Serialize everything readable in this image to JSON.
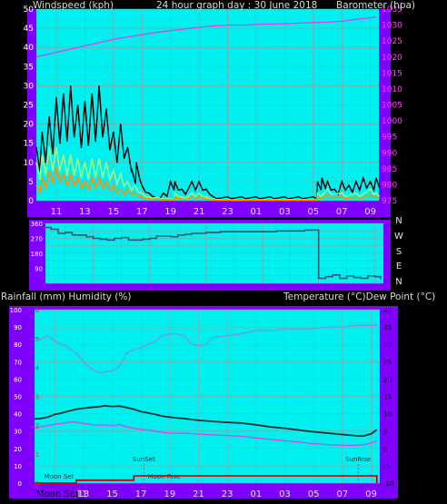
{
  "colors": {
    "background": "#000000",
    "frame": "#7f00ff",
    "plot_bg": "#00f0f0",
    "grid": "#9a9a9a",
    "wind_gust": "#000000",
    "wind_avg": "#90ff90",
    "wind_mean": "#ff9000",
    "barometer": "#e040e0",
    "direction": "#206080",
    "temperature": "#103030",
    "dew_point": "#e040e0",
    "humidity": "#8090e0",
    "rainfall": "#d00000",
    "left_tick": "#ffffff",
    "right_tick_baro": "#ff44ff",
    "red_tick": "#ff2020",
    "bottom_tick": "#000000"
  },
  "chart_data": [
    {
      "type": "line",
      "title": "24 hour graph day : 30 June 2018",
      "ylabel": "Windspeed (kph)",
      "y2label": "Barometer (hpa)",
      "ylim": [
        0,
        50
      ],
      "y2lim": [
        975,
        1035
      ],
      "yticks": [
        "0",
        "5",
        "10",
        "15",
        "20",
        "25",
        "30",
        "35",
        "40",
        "45",
        "50"
      ],
      "y2ticks": [
        "975",
        "980",
        "985",
        "990",
        "995",
        "1000",
        "1005",
        "1010",
        "1015",
        "1020",
        "1025",
        "1030",
        "1035"
      ],
      "xticks": [
        "11",
        "13",
        "15",
        "17",
        "19",
        "21",
        "23",
        "01",
        "03",
        "05",
        "07",
        "09"
      ],
      "grid": true,
      "series": [
        {
          "name": "gust",
          "color": "#000000",
          "x": [
            9.6,
            10,
            10.5,
            11,
            11.5,
            12,
            12.5,
            13,
            13.5,
            14,
            14.5,
            15,
            15.5,
            16,
            16.3,
            16.6,
            17,
            17.5,
            18,
            18.5,
            19,
            19.3,
            19.8,
            20.5,
            21,
            21.5,
            22,
            23,
            24,
            25,
            26,
            27,
            28,
            29,
            29.3,
            29.6,
            30,
            30.5,
            31,
            31.5,
            32,
            32.5,
            33,
            33.4
          ],
          "values": [
            14,
            18,
            22,
            27,
            28,
            30,
            25,
            26,
            28,
            30,
            24,
            18,
            20,
            14,
            8,
            10,
            4,
            2,
            1,
            2,
            5,
            5,
            3,
            5,
            5,
            3,
            1,
            1,
            1,
            1,
            1,
            1,
            1,
            1,
            5,
            6,
            5,
            3,
            5,
            4,
            5,
            6,
            5,
            6
          ]
        },
        {
          "name": "average",
          "color": "#90ff90",
          "x": [
            9.6,
            10,
            10.5,
            11,
            11.5,
            12,
            12.5,
            13,
            13.5,
            14,
            14.5,
            15,
            15.5,
            16,
            16.5,
            17,
            17.5,
            18,
            19,
            19.3,
            19.8,
            20.5,
            21,
            21.5,
            22,
            23,
            29,
            29.3,
            30,
            31,
            32,
            33,
            33.4
          ],
          "values": [
            10,
            12,
            14,
            14,
            12,
            12,
            11,
            10,
            11,
            11,
            10,
            8,
            7,
            5,
            4,
            2,
            1,
            1,
            0.5,
            2,
            1,
            2,
            2,
            1,
            0.5,
            0.3,
            0.3,
            2,
            3,
            2,
            2,
            3,
            2
          ]
        },
        {
          "name": "mean",
          "color": "#ff9000",
          "x": [
            9.6,
            10,
            10.5,
            11,
            11.5,
            12,
            12.5,
            13,
            13.5,
            14,
            14.5,
            15,
            15.5,
            16,
            16.5,
            17,
            17.5,
            18,
            19,
            19.3,
            19.8,
            20.5,
            21,
            21.5,
            22,
            23,
            29,
            29.3,
            30,
            31,
            32,
            33,
            33.4
          ],
          "values": [
            4,
            6,
            8,
            9,
            7,
            7,
            6,
            5,
            6,
            6,
            5,
            4,
            3,
            3,
            2,
            1,
            0.5,
            0.5,
            0.3,
            1,
            0.5,
            1,
            1,
            0.5,
            0.2,
            0.2,
            0.2,
            1,
            1.5,
            1,
            1,
            1.5,
            1
          ]
        },
        {
          "name": "barometer",
          "axis": "y2",
          "color": "#e040e0",
          "x": [
            9.6,
            11,
            12,
            13,
            14,
            15,
            16,
            17,
            18,
            19,
            20,
            21,
            22,
            23,
            24,
            25,
            26,
            27,
            28,
            29,
            30,
            31,
            32,
            33,
            33.4
          ],
          "values": [
            1020,
            1021.5,
            1022.5,
            1023.5,
            1024.5,
            1025.5,
            1026.3,
            1027,
            1027.7,
            1028.3,
            1028.8,
            1029.3,
            1029.7,
            1030,
            1030,
            1030.2,
            1030.3,
            1030.4,
            1030.6,
            1030.8,
            1030.9,
            1031.2,
            1031.8,
            1032.3,
            1032.5
          ]
        }
      ]
    },
    {
      "type": "line",
      "ylabel": "",
      "y2ticks": [
        "N",
        "W",
        "S",
        "E",
        "N"
      ],
      "yticks_left": [
        "360",
        "270",
        "180",
        "90"
      ],
      "ylim": [
        0,
        360
      ],
      "xticks": [
        "11",
        "13",
        "15",
        "17",
        "19",
        "21",
        "23",
        "01",
        "03",
        "05",
        "07",
        "09"
      ],
      "grid": true,
      "series": [
        {
          "name": "direction",
          "color": "#206080",
          "x": [
            9.6,
            10,
            10.5,
            11,
            11.5,
            12,
            12.5,
            13,
            13.5,
            14,
            14.5,
            15,
            15.5,
            16,
            16.5,
            17,
            17.5,
            18,
            18.5,
            19,
            19.5,
            20,
            20.5,
            21,
            21.5,
            22,
            23,
            24,
            25,
            26,
            27,
            28,
            28.9,
            29,
            29.5,
            30,
            30.5,
            31,
            31.5,
            32,
            32.5,
            33,
            33.4
          ],
          "values": [
            335,
            325,
            300,
            305,
            290,
            290,
            280,
            270,
            265,
            260,
            270,
            275,
            260,
            260,
            265,
            270,
            285,
            285,
            280,
            290,
            295,
            300,
            300,
            305,
            305,
            310,
            310,
            310,
            310,
            315,
            315,
            320,
            320,
            30,
            40,
            50,
            30,
            45,
            35,
            30,
            45,
            40,
            25
          ]
        }
      ]
    },
    {
      "type": "line",
      "ylabel": "Rainfall (mm)  Humidity (%)",
      "y2label": "Temperature (°C)Dew Point (°C)",
      "ylim": [
        0,
        100
      ],
      "y2lim": [
        -10,
        40
      ],
      "yticks": [
        "0",
        "10",
        "20",
        "30",
        "40",
        "50",
        "60",
        "70",
        "80",
        "90",
        "100"
      ],
      "y2ticks": [
        "-10",
        "-5",
        "0",
        "5",
        "10",
        "15",
        "20",
        "25",
        "30",
        "35",
        "40"
      ],
      "rain_ticks": [
        "0",
        "1",
        "2",
        "3",
        "4",
        "5",
        "6"
      ],
      "xticks": [
        "11",
        "13",
        "15",
        "17",
        "19",
        "21",
        "23",
        "01",
        "03",
        "05",
        "07",
        "09"
      ],
      "annotations": [
        "SunSet",
        "Moon Rise",
        "Moon Set",
        "SunRise"
      ],
      "grid": true,
      "series": [
        {
          "name": "humidity",
          "axis": "y",
          "color": "#8090e0",
          "x": [
            9.6,
            10,
            10.5,
            11,
            11.5,
            12,
            12.5,
            13,
            13.5,
            14,
            14.5,
            15,
            15.5,
            16,
            16.5,
            17,
            17.5,
            18,
            18.5,
            19,
            19.5,
            20,
            20.5,
            21,
            21.5,
            22,
            23,
            24,
            25,
            26,
            27,
            28,
            29,
            30,
            31,
            32,
            33,
            33.4
          ],
          "values": [
            84,
            83,
            85,
            82,
            80,
            78,
            75,
            70,
            66,
            64,
            64,
            65,
            67,
            75,
            77,
            78,
            80,
            82,
            85,
            86,
            86,
            85,
            80,
            79,
            80,
            84,
            85,
            86,
            88,
            88,
            89,
            89,
            89,
            90,
            90,
            91,
            91,
            91
          ]
        },
        {
          "name": "temperature",
          "axis": "y2",
          "color": "#103030",
          "x": [
            9.6,
            10,
            10.5,
            11,
            11.5,
            12,
            12.5,
            13,
            13.5,
            14,
            14.5,
            15,
            15.5,
            16,
            16.5,
            17,
            17.5,
            18,
            18.5,
            19,
            19.5,
            20,
            21,
            22,
            23,
            24,
            25,
            26,
            27,
            28,
            29,
            30,
            31,
            32,
            32.5,
            33,
            33.4
          ],
          "values": [
            8.5,
            8.6,
            9,
            9.8,
            10.2,
            10.8,
            11.3,
            11.6,
            11.8,
            12,
            12.3,
            12.1,
            12.2,
            11.8,
            11.3,
            10.6,
            10.2,
            9.8,
            9.3,
            9,
            8.8,
            8.6,
            8.1,
            7.8,
            7.5,
            7.3,
            6.8,
            6.2,
            5.8,
            5.3,
            4.8,
            4.4,
            4.0,
            3.6,
            3.6,
            4.2,
            5.4
          ]
        },
        {
          "name": "dew_point",
          "axis": "y2",
          "color": "#e040e0",
          "x": [
            9.6,
            10,
            10.5,
            11,
            11.5,
            12,
            12.5,
            13,
            13.5,
            14,
            14.5,
            15,
            15.5,
            16,
            16.5,
            17,
            17.5,
            18,
            18.5,
            19,
            19.5,
            20,
            21,
            22,
            23,
            24,
            25,
            26,
            27,
            28,
            29,
            30,
            31,
            32,
            32.5,
            33,
            33.4
          ],
          "values": [
            6,
            6.2,
            6.6,
            7.0,
            7.2,
            7.6,
            7.6,
            7.2,
            6.9,
            6.7,
            6.8,
            6.5,
            6.9,
            6.2,
            5.8,
            5.5,
            5.3,
            5.0,
            4.6,
            4.4,
            4.4,
            4.4,
            4.1,
            3.9,
            3.7,
            3.5,
            3.0,
            2.6,
            2.2,
            1.8,
            1.4,
            1.1,
            0.9,
            0.9,
            1.1,
            1.6,
            2.2
          ]
        },
        {
          "name": "rainfall",
          "axis": "rain",
          "color": "#d00000",
          "x": [
            9.6,
            12,
            12.5,
            16,
            16.5,
            17,
            33.2,
            33.4
          ],
          "values": [
            0,
            0,
            0.1,
            0.1,
            0.25,
            0.25,
            0.25,
            0
          ]
        }
      ]
    }
  ],
  "bottom_label": "Moon Set"
}
